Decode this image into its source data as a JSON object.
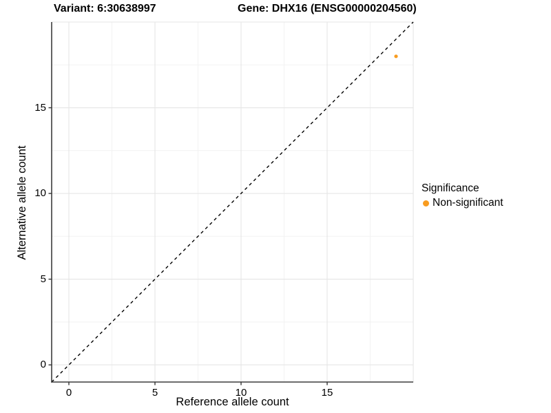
{
  "titles": {
    "variant": "Variant: 6:30638997",
    "gene": "Gene: DHX16 (ENSG00000204560)"
  },
  "legend": {
    "title": "Significance",
    "items": [
      {
        "label": "Non-significant",
        "color": "#F89C20",
        "marker": "circle-icon"
      }
    ]
  },
  "colors": {
    "background": "#FFFFFF",
    "axis_line": "#3C3C3C",
    "tick_mark": "#333333",
    "grid_major": "#E5E5E5",
    "grid_minor": "#F2F2F2",
    "identity_line": "#000000",
    "point": "#F89C20",
    "text": "#000000"
  },
  "chart_data": {
    "type": "scatter",
    "title": "Variant: 6:30638997   Gene: DHX16 (ENSG00000204560)",
    "xlabel": "Reference allele count",
    "ylabel": "Alternative allele count",
    "xlim": [
      -1,
      20
    ],
    "ylim": [
      -1,
      20
    ],
    "x_ticks": [
      0,
      5,
      10,
      15
    ],
    "y_ticks": [
      0,
      5,
      10,
      15
    ],
    "x_grid_major": [
      0,
      5,
      10,
      15,
      20
    ],
    "y_grid_major": [
      0,
      5,
      10,
      15,
      20
    ],
    "x_grid_minor": [
      2.5,
      7.5,
      12.5,
      17.5
    ],
    "y_grid_minor": [
      2.5,
      7.5,
      12.5,
      17.5
    ],
    "grid": true,
    "legend_position": "right",
    "reference_line": {
      "type": "identity",
      "style": "dashed",
      "from": [
        -1,
        -1
      ],
      "to": [
        20,
        20
      ]
    },
    "series": [
      {
        "name": "Non-significant",
        "color": "#F89C20",
        "points": [
          [
            19,
            18
          ]
        ]
      }
    ]
  }
}
